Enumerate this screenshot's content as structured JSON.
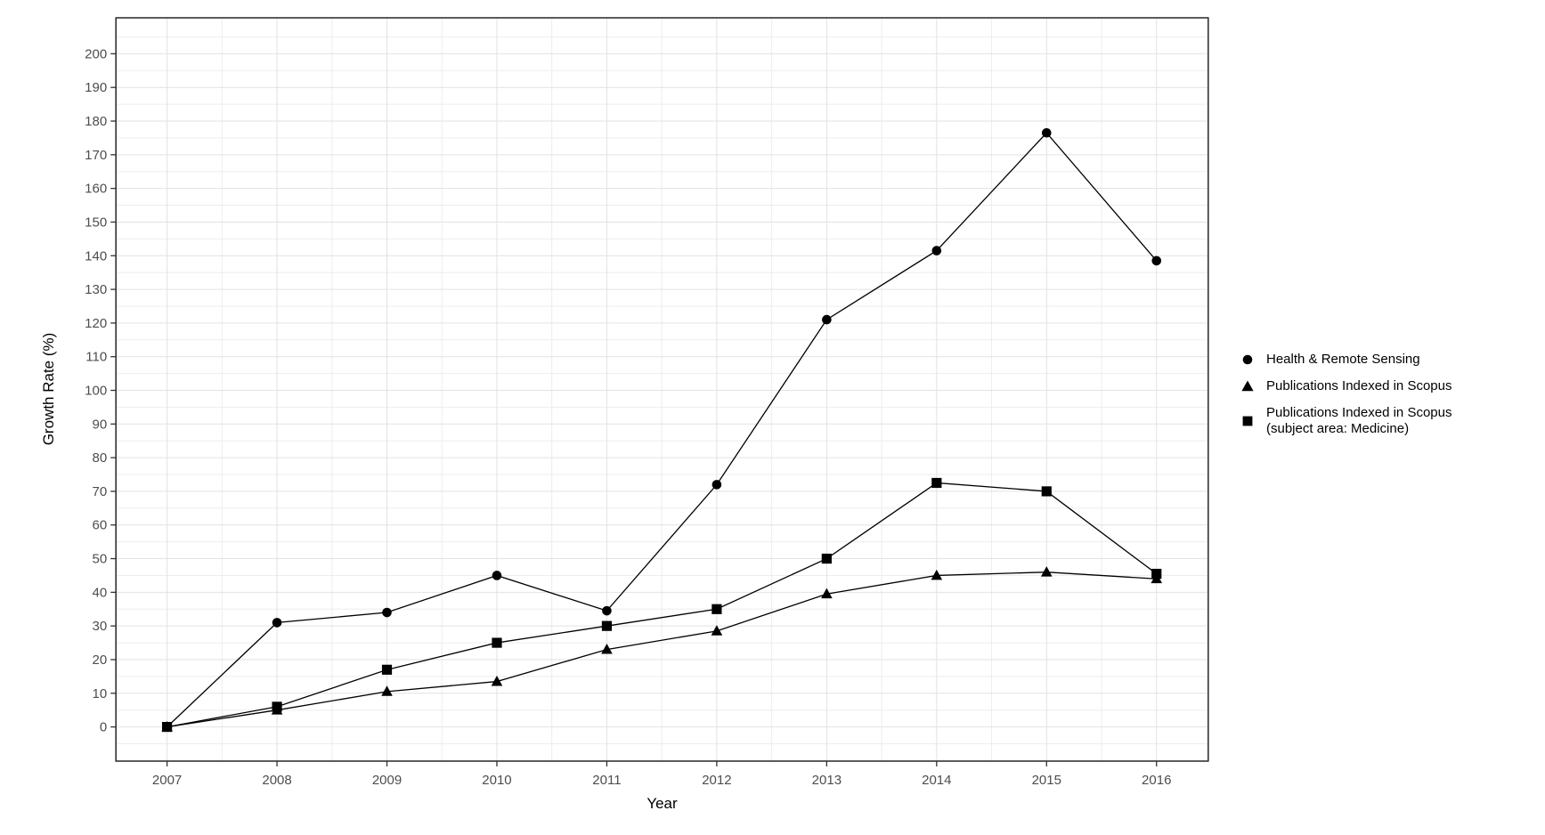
{
  "chart_data": {
    "type": "line",
    "title": "",
    "xlabel": "Year",
    "ylabel": "Growth Rate (%)",
    "x": [
      2007,
      2008,
      2009,
      2010,
      2011,
      2012,
      2013,
      2014,
      2015,
      2016
    ],
    "x_tick_labels": [
      "2007",
      "2008",
      "2009",
      "2010",
      "2011",
      "2012",
      "2013",
      "2014",
      "2015",
      "2016"
    ],
    "yticks": {
      "start": 0,
      "end": 200,
      "step": 10
    },
    "ylim": [
      -10,
      211
    ],
    "grid": "major-and-minor",
    "legend_position": "right-center",
    "series": [
      {
        "name": "Health & Remote Sensing",
        "marker": "circle",
        "values": [
          0,
          31,
          34,
          45,
          34.5,
          72,
          121,
          141.5,
          176.5,
          138.5
        ]
      },
      {
        "name": "Publications Indexed in Scopus",
        "marker": "triangle",
        "values": [
          0,
          5,
          10.5,
          13.5,
          23,
          28.5,
          39.5,
          45,
          46,
          44
        ]
      },
      {
        "name": "Publications Indexed in Scopus (subject area: Medicine)",
        "name_lines": [
          "Publications Indexed in Scopus",
          "(subject area: Medicine)"
        ],
        "marker": "square",
        "values": [
          0,
          6,
          17,
          25,
          30,
          35,
          50,
          72.5,
          70,
          45.5
        ]
      }
    ],
    "colors": {
      "series": "#000000",
      "grid_major": "#e2e2e2",
      "grid_minor": "#ededed",
      "panel_border": "#333333",
      "tick_mark": "#333333",
      "tick_label": "#4d4d4d",
      "axis_title": "#000000",
      "background": "#ffffff"
    }
  }
}
